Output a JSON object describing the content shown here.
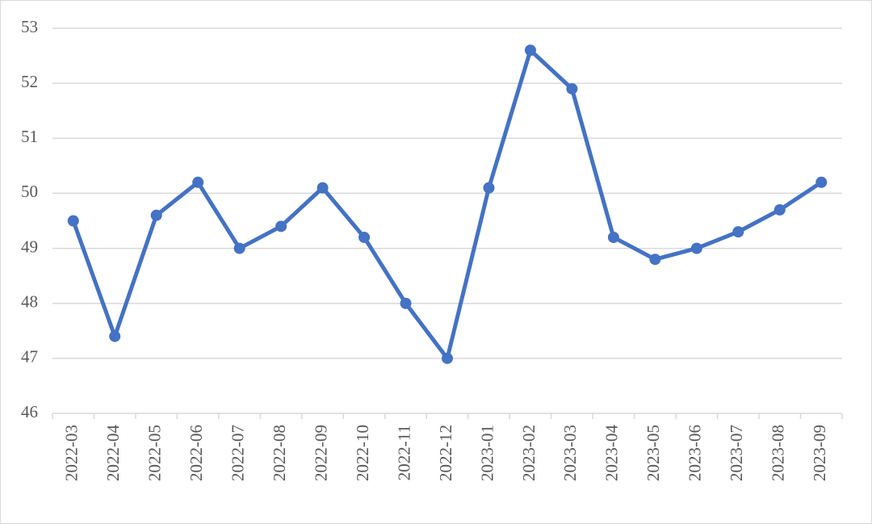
{
  "chart_data": {
    "type": "line",
    "categories": [
      "2022-03",
      "2022-04",
      "2022-05",
      "2022-06",
      "2022-07",
      "2022-08",
      "2022-09",
      "2022-10",
      "2022-11",
      "2022-12",
      "2023-01",
      "2023-02",
      "2023-03",
      "2023-04",
      "2023-05",
      "2023-06",
      "2023-07",
      "2023-08",
      "2023-09"
    ],
    "values": [
      49.5,
      47.4,
      49.6,
      50.2,
      49.0,
      49.4,
      50.1,
      49.2,
      48.0,
      47.0,
      50.1,
      52.6,
      51.9,
      49.2,
      48.8,
      49.0,
      49.3,
      49.7,
      50.2
    ],
    "color": "#4472c4",
    "ylim": [
      46,
      53
    ],
    "yticks": [
      46,
      47,
      48,
      49,
      50,
      51,
      52,
      53
    ],
    "grid": true
  }
}
